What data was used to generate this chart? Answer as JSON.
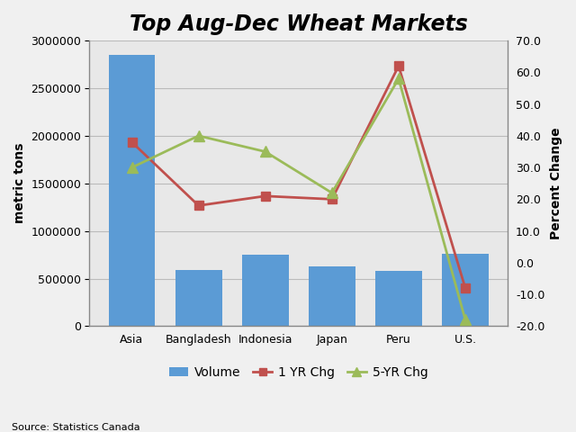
{
  "categories": [
    "Asia",
    "Bangladesh",
    "Indonesia",
    "Japan",
    "Peru",
    "U.S."
  ],
  "volumes": [
    2850000,
    590000,
    750000,
    630000,
    580000,
    760000
  ],
  "chg_1yr": [
    38.0,
    18.0,
    21.0,
    20.0,
    62.0,
    -8.0
  ],
  "chg_5yr": [
    30.0,
    40.0,
    35.0,
    22.0,
    58.0,
    -18.0
  ],
  "bar_color": "#5B9BD5",
  "line1_color": "#C0504D",
  "line2_color": "#9BBB59",
  "title": "Top Aug-Dec Wheat Markets",
  "ylabel_left": "metric tons",
  "ylabel_right": "Percent Change",
  "source": "Source: Statistics Canada",
  "ylim_left": [
    0,
    3000000
  ],
  "ylim_right": [
    -20.0,
    70.0
  ],
  "yticks_left": [
    0,
    500000,
    1000000,
    1500000,
    2000000,
    2500000,
    3000000
  ],
  "yticks_right": [
    -20.0,
    -10.0,
    0.0,
    10.0,
    20.0,
    30.0,
    40.0,
    50.0,
    60.0,
    70.0
  ],
  "legend_labels": [
    "Volume",
    "1 YR Chg",
    "5-YR Chg"
  ],
  "title_fontsize": 17,
  "label_fontsize": 10,
  "tick_fontsize": 9,
  "source_fontsize": 8,
  "plot_bg_color": "#E8E8E8",
  "fig_bg_color": "#F0F0F0",
  "grid_color": "#BBBBBB"
}
